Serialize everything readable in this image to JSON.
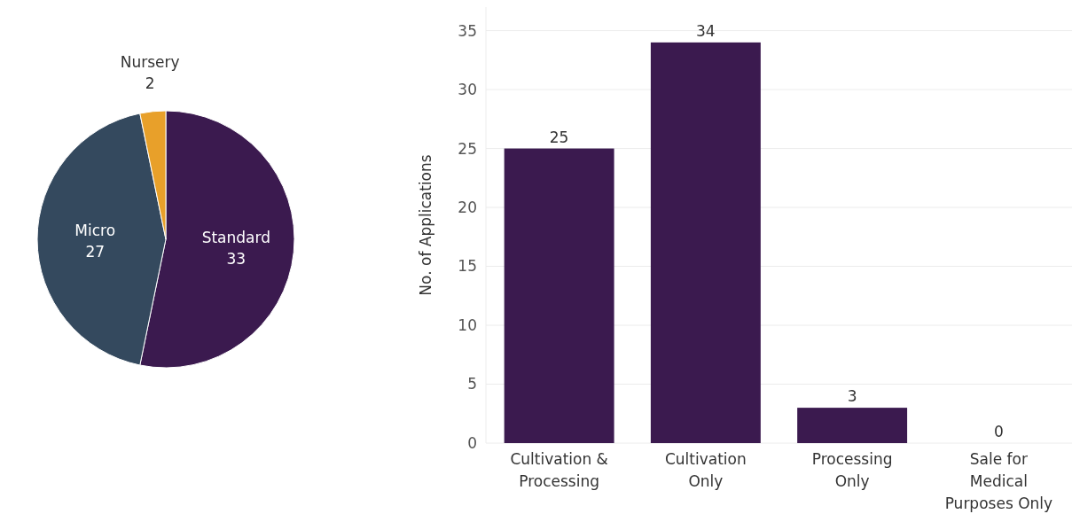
{
  "chart_data": [
    {
      "type": "pie",
      "categories": [
        "Standard",
        "Micro",
        "Nursery"
      ],
      "values": [
        33,
        27,
        2
      ],
      "colors": [
        "#3b1a4f",
        "#34495e",
        "#e8a02a"
      ],
      "data_labels": true
    },
    {
      "type": "bar",
      "ylabel": "No. of Applications",
      "categories": [
        "Cultivation & Processing",
        "Cultivation Only",
        "Processing Only",
        "Sale for Medical Purposes Only"
      ],
      "values": [
        25,
        34,
        3,
        0
      ],
      "color": "#3b1a4f",
      "ylim": [
        0,
        37
      ],
      "yticks": [
        0,
        5,
        10,
        15,
        20,
        25,
        30,
        35
      ],
      "grid": "y",
      "data_labels": true
    }
  ]
}
